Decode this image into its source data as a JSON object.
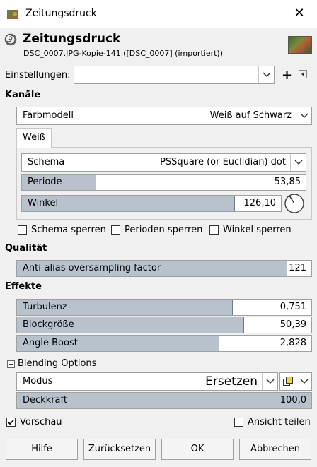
{
  "window": {
    "title": "Zeitungsdruck",
    "close_icon": "close-icon"
  },
  "header": {
    "title": "Zeitungsdruck",
    "subtitle": "DSC_0007.JPG-Kopie-141 ([DSC_0007] (importiert))"
  },
  "presets": {
    "label": "Einstellungen:",
    "value": ""
  },
  "kanaele": {
    "label": "Kanäle",
    "farbmodell": {
      "label": "Farbmodell",
      "value": "Weiß auf Schwarz"
    },
    "tab": "Weiß",
    "schema": {
      "label": "Schema",
      "value": "PSSquare (or Euclidian) dot"
    },
    "periode": {
      "label": "Periode",
      "value": "53,85",
      "fill": 0.25
    },
    "winkel": {
      "label": "Winkel",
      "value": "126,10",
      "fill": 0.83
    },
    "checks": [
      {
        "label": "Schema sperren",
        "checked": false
      },
      {
        "label": "Perioden sperren",
        "checked": false
      },
      {
        "label": "Winkel sperren",
        "checked": false
      }
    ]
  },
  "qualitaet": {
    "label": "Qualität",
    "antialias": {
      "label": "Anti-alias oversampling factor",
      "value": "121",
      "fill": 0.92
    }
  },
  "effekte": {
    "label": "Effekte",
    "turbulenz": {
      "label": "Turbulenz",
      "value": "0,751",
      "fill": 0.73
    },
    "blockgroesse": {
      "label": "Blockgröße",
      "value": "50,39",
      "fill": 0.77
    },
    "angle_boost": {
      "label": "Angle Boost",
      "value": "2,828",
      "fill": 0.68
    }
  },
  "blending": {
    "label": "Blending Options",
    "modus": {
      "label": "Modus",
      "value": "Ersetzen"
    },
    "deckkraft": {
      "label": "Deckkraft",
      "value": "100,0",
      "fill": 1.0
    }
  },
  "footer": {
    "vorschau": {
      "label": "Vorschau",
      "checked": true
    },
    "ansicht_teilen": {
      "label": "Ansicht teilen",
      "checked": false
    },
    "buttons": {
      "hilfe": "Hilfe",
      "zuruecksetzen": "Zurücksetzen",
      "ok": "OK",
      "abbrechen": "Abbrechen"
    }
  }
}
